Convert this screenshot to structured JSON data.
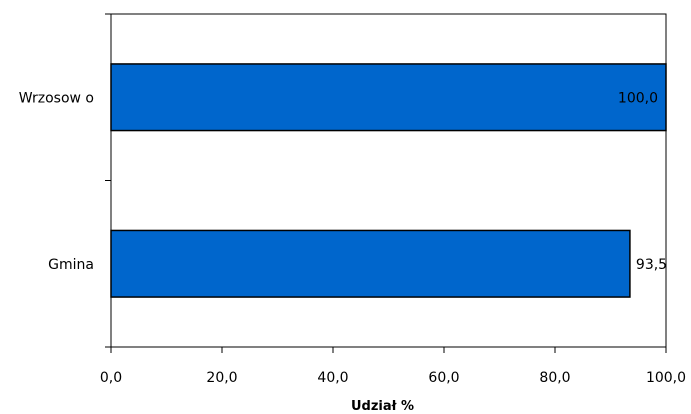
{
  "chart_data": {
    "type": "bar",
    "orientation": "horizontal",
    "categories": [
      "Wrzosowo",
      "Gmina"
    ],
    "display_categories": [
      "Wrzosow o",
      "Gmina"
    ],
    "values": [
      100.0,
      93.5
    ],
    "data_labels": [
      "100,0",
      "93,5"
    ],
    "xlabel": "Udział %",
    "xlim": [
      0,
      100
    ],
    "xticks": [
      0,
      20,
      40,
      60,
      80,
      100
    ],
    "xtick_labels": [
      "0,0",
      "20,0",
      "40,0",
      "60,0",
      "80,0",
      "100,0"
    ],
    "grid": false,
    "legend": "none",
    "bar_color": "#0066cc",
    "bar_edge_color": "#000000"
  }
}
